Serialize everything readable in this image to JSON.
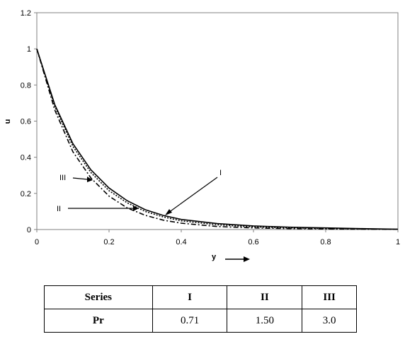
{
  "chart_data": {
    "type": "line",
    "title": "",
    "xlabel": "y",
    "ylabel": "u",
    "xlim": [
      0,
      1
    ],
    "ylim": [
      0,
      1.2
    ],
    "x_ticks": [
      "0",
      "0.2",
      "0.4",
      "0.6",
      "0.8",
      "1"
    ],
    "y_ticks": [
      "0",
      "0.2",
      "0.4",
      "0.6",
      "0.8",
      "1",
      "1.2"
    ],
    "grid": false,
    "series": [
      {
        "name": "I",
        "style": "solid",
        "x": [
          0,
          0.05,
          0.1,
          0.15,
          0.2,
          0.25,
          0.3,
          0.35,
          0.4,
          0.5,
          0.6,
          0.7,
          0.8,
          0.9,
          1.0
        ],
        "y": [
          1.0,
          0.69,
          0.475,
          0.33,
          0.23,
          0.16,
          0.11,
          0.078,
          0.056,
          0.033,
          0.02,
          0.013,
          0.009,
          0.005,
          0.002
        ]
      },
      {
        "name": "II",
        "style": "dotted",
        "x": [
          0,
          0.05,
          0.1,
          0.15,
          0.2,
          0.25,
          0.3,
          0.35,
          0.4,
          0.5,
          0.6,
          0.7,
          0.8,
          0.9,
          1.0
        ],
        "y": [
          1.0,
          0.68,
          0.46,
          0.315,
          0.215,
          0.148,
          0.1,
          0.07,
          0.048,
          0.026,
          0.015,
          0.009,
          0.006,
          0.003,
          0.001
        ]
      },
      {
        "name": "III",
        "style": "dash-dot",
        "x": [
          0,
          0.05,
          0.1,
          0.15,
          0.2,
          0.25,
          0.3,
          0.35,
          0.4,
          0.5,
          0.6,
          0.7,
          0.8,
          0.9,
          1.0
        ],
        "y": [
          1.0,
          0.66,
          0.43,
          0.285,
          0.185,
          0.12,
          0.079,
          0.052,
          0.035,
          0.017,
          0.009,
          0.005,
          0.003,
          0.002,
          0.001
        ]
      }
    ],
    "annotations": [
      {
        "label": "I",
        "points_to_series": "I"
      },
      {
        "label": "II",
        "points_to_series": "II"
      },
      {
        "label": "III",
        "points_to_series": "III"
      }
    ]
  },
  "legend_table": {
    "headers": [
      "Series",
      "I",
      "II",
      "III"
    ],
    "row_label": "Pr",
    "values": [
      "0.71",
      "1.50",
      "3.0"
    ]
  }
}
